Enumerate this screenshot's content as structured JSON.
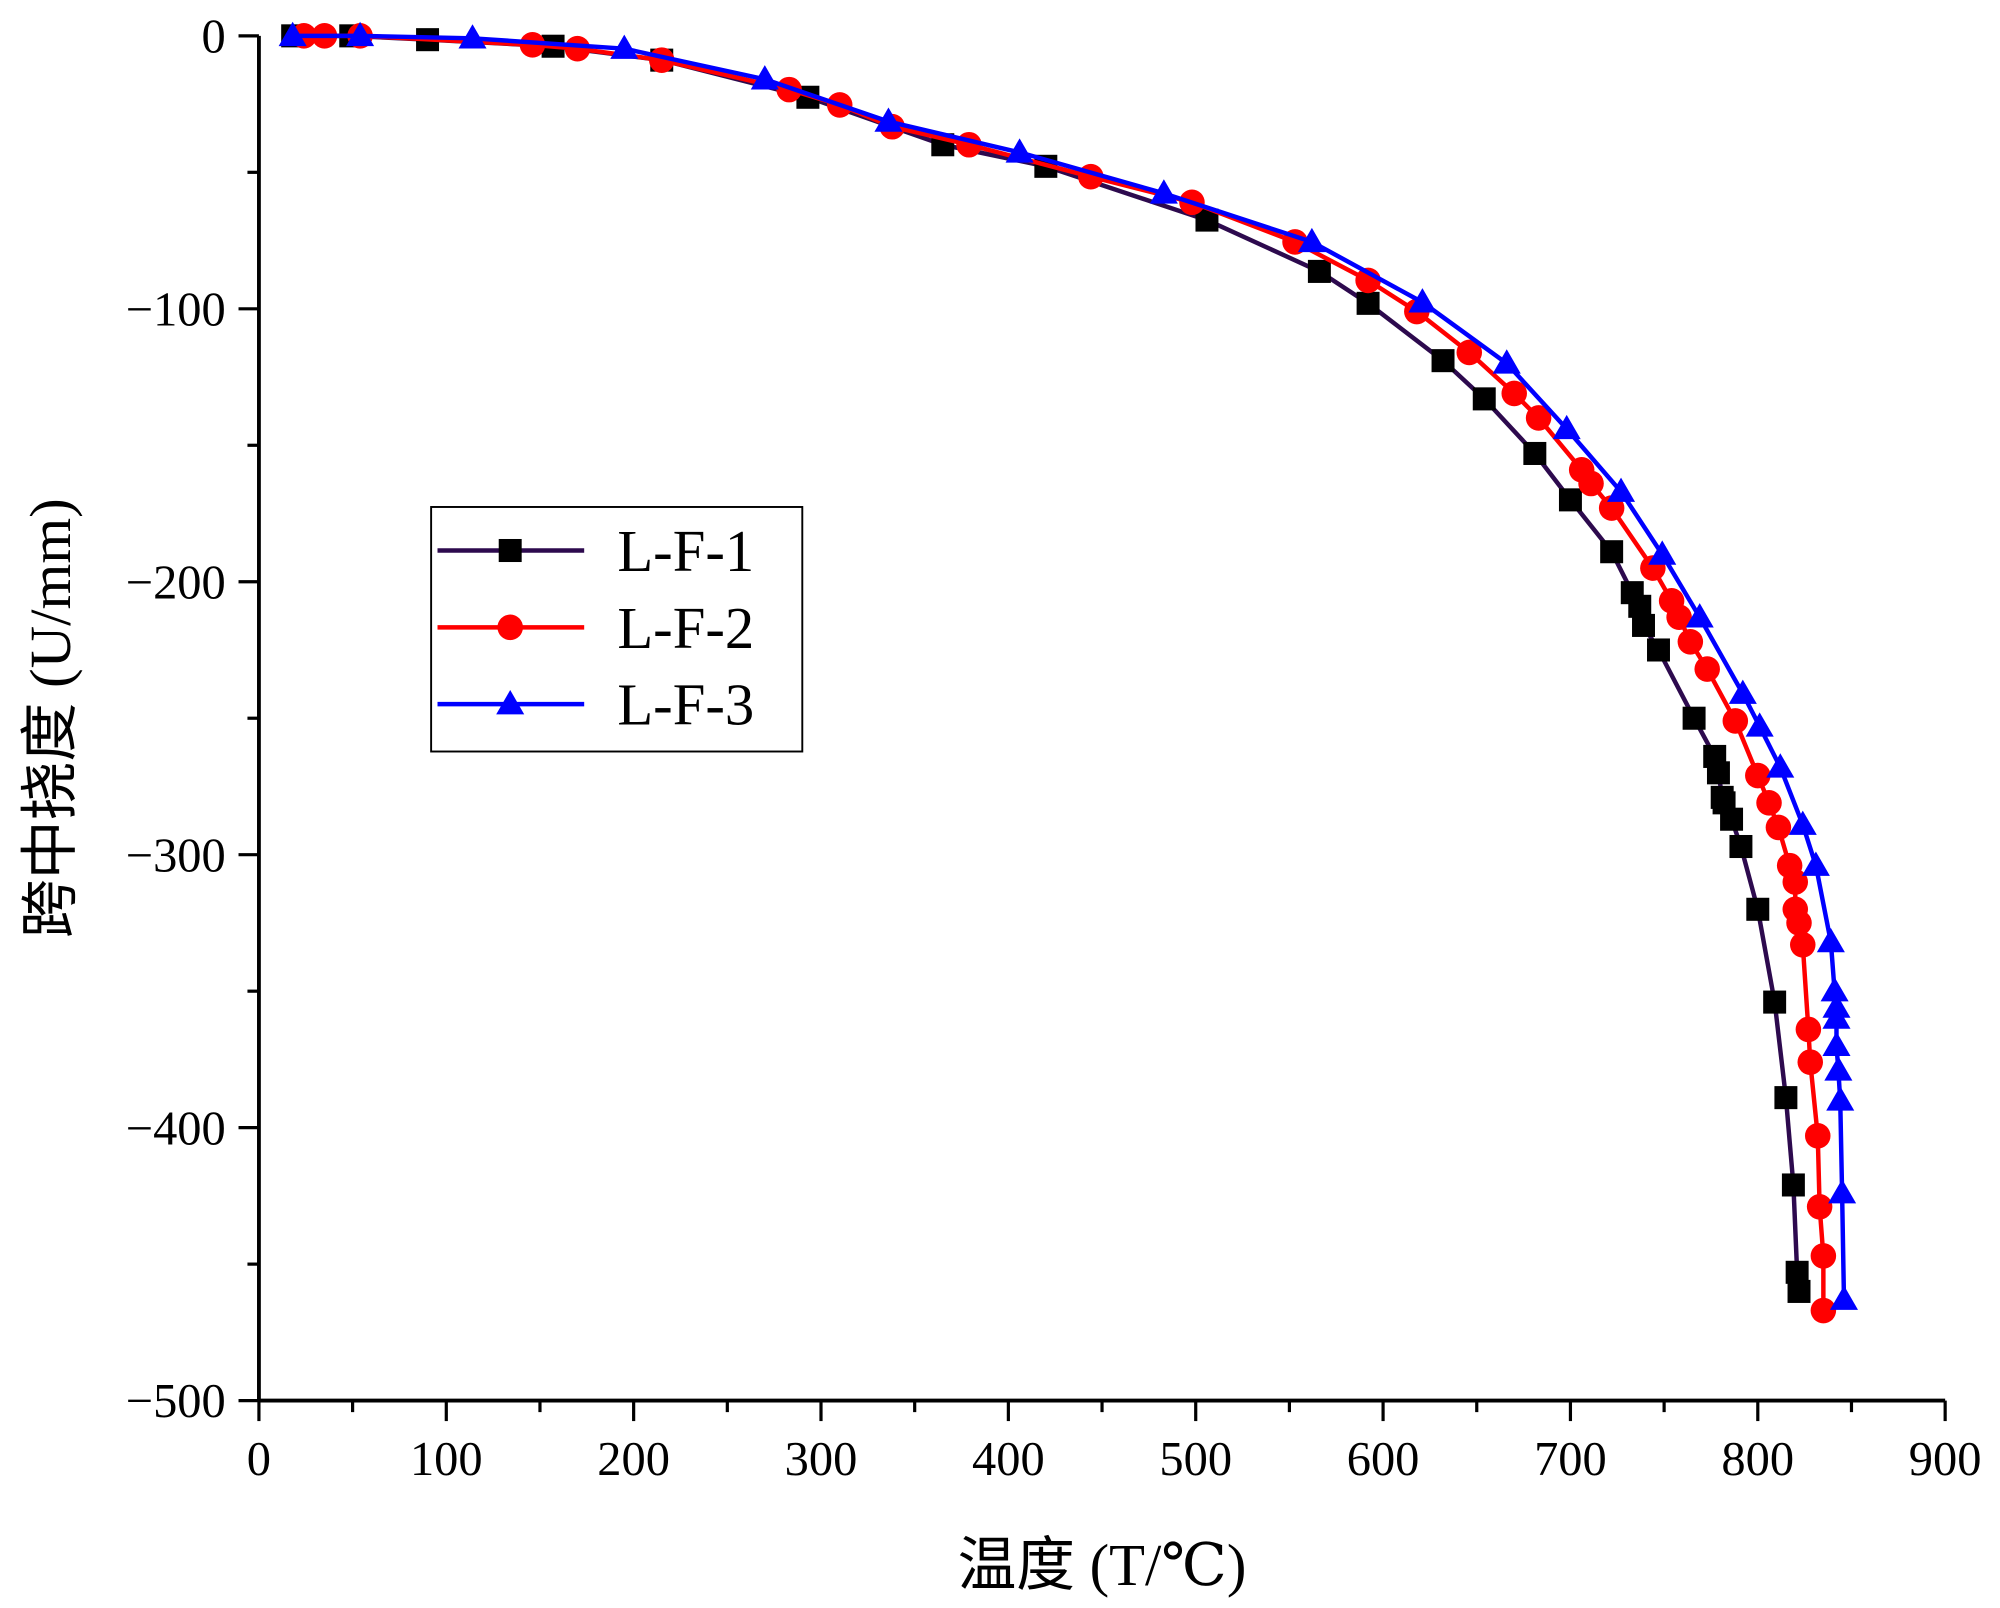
{
  "chart_data": {
    "type": "line",
    "xlabel": "温度 (T/℃)",
    "ylabel": "跨中挠度 (U/mm)",
    "xlim": [
      0,
      900
    ],
    "xticks": [
      0,
      100,
      200,
      300,
      400,
      500,
      600,
      700,
      800,
      900
    ],
    "xminorticks": [
      50,
      150,
      250,
      350,
      450,
      550,
      650,
      750,
      850
    ],
    "ylim": [
      -500,
      0
    ],
    "yticks": [
      {
        "value": -500,
        "label": "−500"
      },
      {
        "value": -400,
        "label": "−400"
      },
      {
        "value": -300,
        "label": "−300"
      },
      {
        "value": -200,
        "label": "−200"
      },
      {
        "value": -100,
        "label": "−100"
      },
      0
    ],
    "yminorticks": [
      -450,
      -350,
      -250,
      -150,
      -50
    ],
    "legend": "center-left",
    "series": [
      {
        "name": "L-F-1",
        "color": "#000000",
        "line_color": "#2d0a4e",
        "marker": "square",
        "x": [
          18,
          49,
          90,
          157,
          215,
          293,
          365,
          420,
          506,
          566,
          592,
          632,
          654,
          681,
          700,
          722,
          733,
          737,
          739,
          747,
          766,
          777,
          779,
          781,
          782,
          786,
          791,
          800,
          809,
          815,
          819,
          821,
          822
        ],
        "values": [
          0,
          0,
          -1.4,
          -3.8,
          -8.9,
          -22.5,
          -39.9,
          -47.8,
          -67.5,
          -86.3,
          -98,
          -119,
          -133,
          -153,
          -170,
          -189,
          -204,
          -209,
          -216,
          -225,
          -250,
          -264,
          -270,
          -279,
          -281,
          -287,
          -297,
          -320,
          -354,
          -389,
          -421,
          -453,
          -460
        ]
      },
      {
        "name": "L-F-2",
        "color": "#ff0000",
        "line_color": "#ff0000",
        "marker": "circle",
        "x": [
          24,
          35,
          54,
          146,
          170,
          215,
          283,
          310,
          338,
          379,
          444,
          498,
          553,
          592,
          618,
          646,
          670,
          683,
          706,
          711,
          722,
          744,
          754,
          758,
          764,
          773,
          788,
          800,
          806,
          811,
          817,
          820,
          820,
          822,
          824,
          827,
          828,
          832,
          833,
          835,
          835
        ],
        "values": [
          0,
          0,
          0,
          -3.3,
          -4.7,
          -8.9,
          -19.7,
          -25.3,
          -33.3,
          -39.9,
          -51.6,
          -61,
          -75.5,
          -89.6,
          -101,
          -116,
          -131,
          -140,
          -159,
          -164,
          -173,
          -195,
          -207,
          -213,
          -222,
          -232,
          -251,
          -271,
          -281,
          -290,
          -304,
          -310,
          -320,
          -325,
          -333,
          -364,
          -376,
          -403,
          -429,
          -447,
          -467
        ]
      },
      {
        "name": "L-F-3",
        "color": "#0000ff",
        "line_color": "#0000ff",
        "marker": "triangle",
        "x": [
          18,
          54,
          114,
          195,
          270,
          336,
          406,
          483,
          562,
          621,
          666,
          698,
          727,
          749,
          769,
          792,
          801,
          812,
          824,
          831,
          839,
          841,
          842,
          842,
          842,
          843,
          844,
          845,
          846
        ],
        "values": [
          0,
          0,
          -0.9,
          -4.7,
          -15.9,
          -31.4,
          -42.7,
          -57.7,
          -75.5,
          -97.6,
          -120,
          -144,
          -167,
          -190,
          -213,
          -241,
          -253,
          -268,
          -289,
          -304,
          -332,
          -350,
          -356,
          -360,
          -370,
          -379,
          -390,
          -424,
          -463
        ]
      }
    ]
  }
}
